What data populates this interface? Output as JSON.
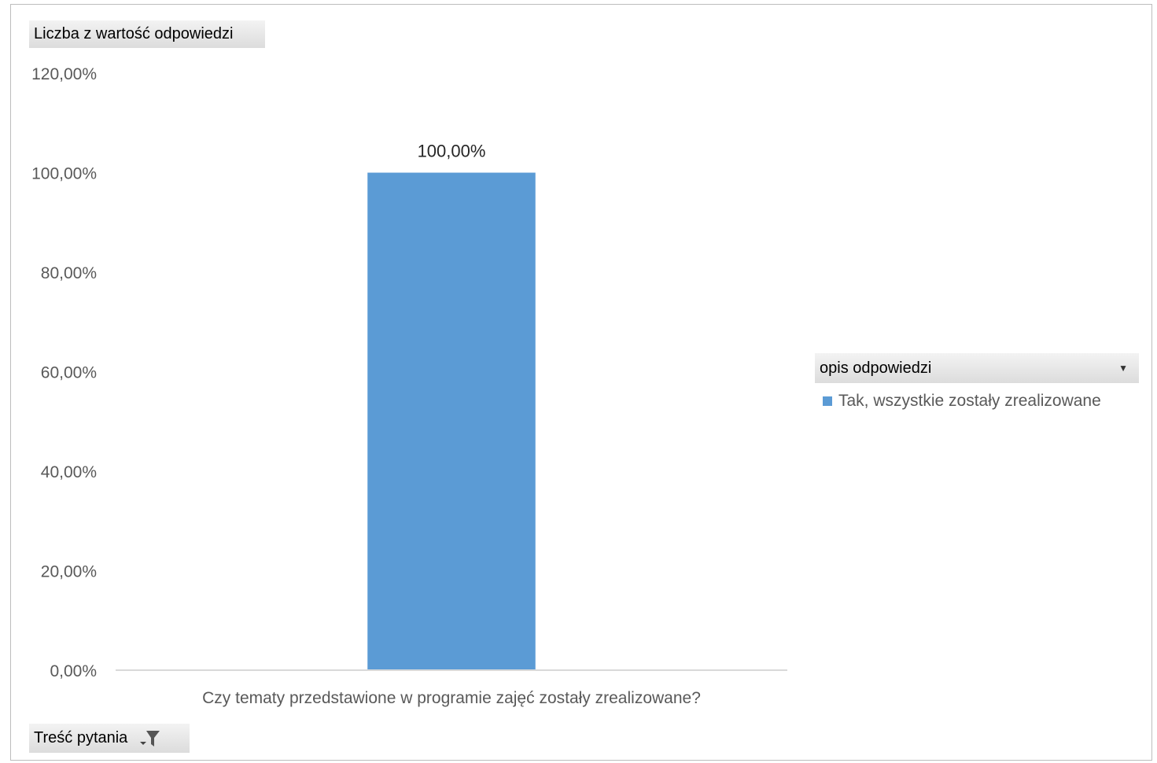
{
  "fields": {
    "value_field_label": "Liczba z wartość odpowiedzi",
    "category_field_label": "Treść pytania",
    "legend_field_label": "opis odpowiedzi"
  },
  "icons": {
    "legend_dropdown": "chevron-down-icon",
    "category_filter": "filter-icon"
  },
  "chart_data": {
    "type": "bar",
    "categories": [
      "Czy  tematy przedstawione w programie zajęć zostały zrealizowane?"
    ],
    "series": [
      {
        "name": "Tak, wszystkie zostały zrealizowane",
        "values": [
          100.0
        ],
        "data_labels": [
          "100,00%"
        ],
        "color": "#5b9bd5"
      }
    ],
    "ylim": [
      0,
      120
    ],
    "yticks": [
      0,
      20,
      40,
      60,
      80,
      100,
      120
    ],
    "ytick_labels": [
      "0,00%",
      "20,00%",
      "40,00%",
      "60,00%",
      "80,00%",
      "100,00%",
      "120,00%"
    ],
    "grid": false,
    "legend_position": "right"
  }
}
